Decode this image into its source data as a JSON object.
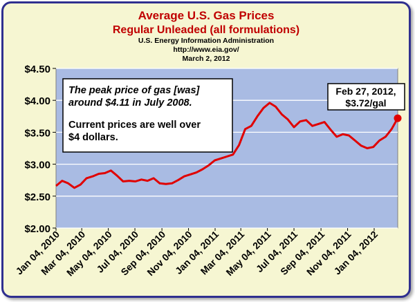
{
  "chart_data": {
    "type": "line",
    "title": "Average U.S. Gas Prices",
    "subtitle": "Regular Unleaded (all formulations)",
    "source_lines": [
      "U.S. Energy Information Administration",
      "http://www.eia.gov/",
      "March 2, 2012"
    ],
    "xlabel": "",
    "ylabel": "",
    "ylim": [
      2.0,
      4.5
    ],
    "y_ticks": [
      "$2.00",
      "$2.50",
      "$3.00",
      "$3.50",
      "$4.00",
      "$4.50"
    ],
    "x_tick_labels": [
      "Jan 04, 2010",
      "Mar 04, 2010",
      "May 04, 2010",
      "Jul 04, 2010",
      "Sep 04, 2010",
      "Nov 04, 2010",
      "Jan 04, 2011",
      "Mar 04, 2011",
      "May 04, 2011",
      "Jul 04, 2011",
      "Sep 04, 2011",
      "Nov 04, 2011",
      "Jan 04, 2012"
    ],
    "grid": true,
    "line_color": "#e00000",
    "plot_background": "#a9bbe3",
    "series": [
      {
        "x": [
          "2010-01-04",
          "2010-01-18",
          "2010-02-01",
          "2010-02-15",
          "2010-03-01",
          "2010-03-15",
          "2010-03-29",
          "2010-04-12",
          "2010-04-26",
          "2010-05-10",
          "2010-05-24",
          "2010-06-07",
          "2010-06-21",
          "2010-07-05",
          "2010-07-19",
          "2010-08-02",
          "2010-08-16",
          "2010-08-30",
          "2010-09-13",
          "2010-09-27",
          "2010-10-11",
          "2010-10-25",
          "2010-11-08",
          "2010-11-22",
          "2010-12-06",
          "2010-12-20",
          "2011-01-03",
          "2011-01-17",
          "2011-01-31",
          "2011-02-14",
          "2011-02-28",
          "2011-03-14",
          "2011-03-28",
          "2011-04-11",
          "2011-04-25",
          "2011-05-09",
          "2011-05-23",
          "2011-06-06",
          "2011-06-20",
          "2011-07-04",
          "2011-07-18",
          "2011-08-01",
          "2011-08-15",
          "2011-08-29",
          "2011-09-12",
          "2011-09-26",
          "2011-10-10",
          "2011-10-24",
          "2011-11-07",
          "2011-11-21",
          "2011-12-05",
          "2011-12-19",
          "2012-01-02",
          "2012-01-16",
          "2012-01-30",
          "2012-02-13",
          "2012-02-27"
        ],
        "values": [
          2.66,
          2.74,
          2.7,
          2.63,
          2.68,
          2.78,
          2.81,
          2.85,
          2.86,
          2.9,
          2.82,
          2.73,
          2.74,
          2.73,
          2.76,
          2.74,
          2.78,
          2.7,
          2.69,
          2.7,
          2.75,
          2.81,
          2.84,
          2.87,
          2.92,
          2.98,
          3.06,
          3.09,
          3.12,
          3.15,
          3.3,
          3.55,
          3.6,
          3.75,
          3.88,
          3.96,
          3.9,
          3.78,
          3.7,
          3.58,
          3.67,
          3.69,
          3.6,
          3.63,
          3.66,
          3.54,
          3.43,
          3.47,
          3.45,
          3.37,
          3.29,
          3.25,
          3.27,
          3.37,
          3.43,
          3.55,
          3.72
        ]
      }
    ],
    "annotations": [
      {
        "lines": [
          "The peak price of gas [was]",
          "around $4.11 in July 2008."
        ],
        "style": "italic"
      },
      {
        "lines": [
          "Current prices are well over",
          "$4 dollars."
        ],
        "style": "normal"
      },
      {
        "lines": [
          "Feb 27, 2012,",
          "$3.72/gal"
        ],
        "style": "normal"
      }
    ]
  }
}
